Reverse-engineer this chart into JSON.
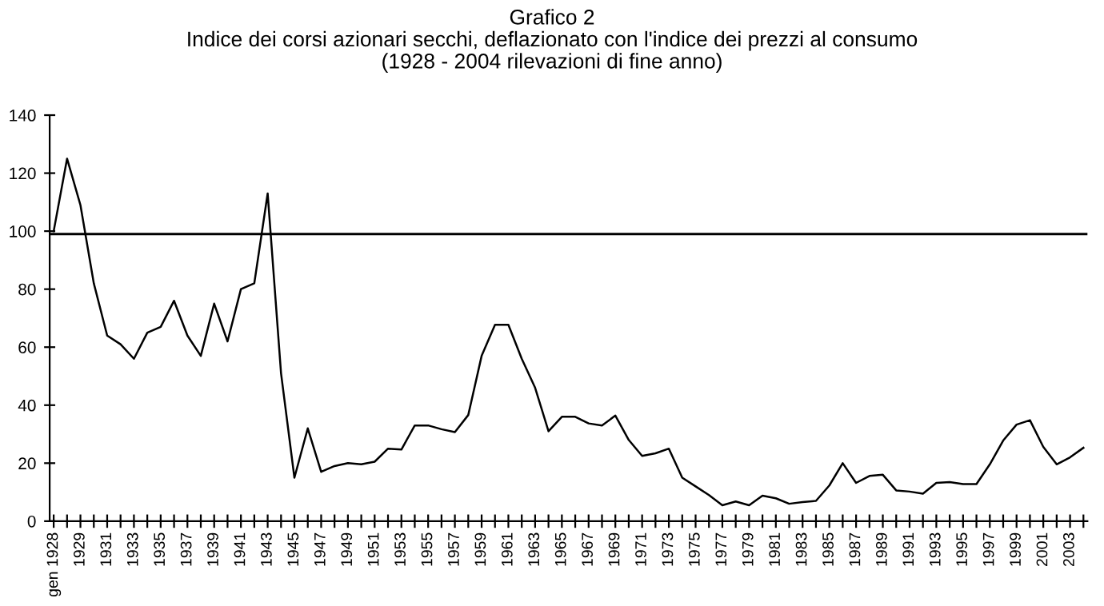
{
  "chart_data": {
    "type": "line",
    "title": "Grafico 2\nIndice dei corsi azionari secchi, deflazionato con l'indice dei prezzi al consumo\n(1928 - 2004 rilevazioni di fine anno)",
    "categories": [
      "gen 1928",
      null,
      "1929",
      null,
      "1931",
      null,
      "1933",
      null,
      "1935",
      null,
      "1937",
      null,
      "1939",
      null,
      "1941",
      null,
      "1943",
      null,
      "1945",
      null,
      "1947",
      null,
      "1949",
      null,
      "1951",
      null,
      "1953",
      null,
      "1955",
      null,
      "1957",
      null,
      "1959",
      null,
      "1961",
      null,
      "1963",
      null,
      "1965",
      null,
      "1967",
      null,
      "1969",
      null,
      "1971",
      null,
      "1973",
      null,
      "1975",
      null,
      "1977",
      null,
      "1979",
      null,
      "1981",
      null,
      "1983",
      null,
      "1985",
      null,
      "1987",
      null,
      "1989",
      null,
      "1991",
      null,
      "1993",
      null,
      "1995",
      null,
      "1997",
      null,
      "1999",
      null,
      "2001",
      null,
      "2003",
      null
    ],
    "series": [
      {
        "color": "#000000",
        "values": [
          100,
          125,
          109,
          82,
          64,
          61,
          56,
          65,
          67,
          76,
          64,
          57,
          75,
          62,
          80,
          82,
          113,
          51,
          15,
          32,
          17,
          19,
          20,
          19.6,
          20.5,
          25,
          24.7,
          33,
          33,
          31.7,
          30.7,
          36.6,
          57,
          67.7,
          67.7,
          56,
          46,
          31,
          36,
          36,
          33.7,
          33,
          36.4,
          28,
          22.5,
          23.4,
          25,
          15,
          12,
          9,
          5.5,
          6.8,
          5.5,
          8.8,
          7.9,
          6,
          6.6,
          7,
          12.3,
          20,
          13.2,
          15.6,
          16,
          10.6,
          10.2,
          9.5,
          13.2,
          13.5,
          12.8,
          12.8,
          19.6,
          27.8,
          33.3,
          34.8,
          25.6,
          19.6,
          22,
          25.3
        ]
      }
    ],
    "ylim": [
      0,
      140
    ],
    "yticks": [
      0,
      20,
      40,
      60,
      80,
      100,
      120,
      140
    ],
    "grid": false,
    "legend": false,
    "marker": "none",
    "line_style": "solid",
    "ref_lines": [
      {
        "axis": "y",
        "value": 99,
        "color": "#000000"
      }
    ]
  }
}
